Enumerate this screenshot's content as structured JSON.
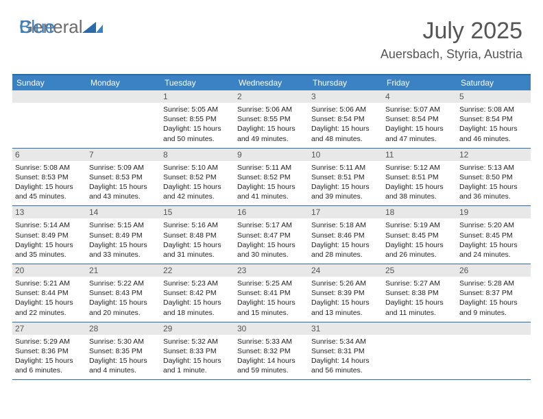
{
  "logo": {
    "line1": "General",
    "line2": "Blue"
  },
  "header": {
    "month_title": "July 2025",
    "location": "Auersbach, Styria, Austria"
  },
  "day_names": [
    "Sunday",
    "Monday",
    "Tuesday",
    "Wednesday",
    "Thursday",
    "Friday",
    "Saturday"
  ],
  "colors": {
    "header_bg": "#3b82c4",
    "border": "#2b6aa8",
    "daynum_bg": "#e8e8e8",
    "text_title": "#555555"
  },
  "weeks": [
    [
      null,
      null,
      {
        "n": "1",
        "sunrise": "5:05 AM",
        "sunset": "8:55 PM",
        "daylight": "15 hours and 50 minutes."
      },
      {
        "n": "2",
        "sunrise": "5:06 AM",
        "sunset": "8:55 PM",
        "daylight": "15 hours and 49 minutes."
      },
      {
        "n": "3",
        "sunrise": "5:06 AM",
        "sunset": "8:54 PM",
        "daylight": "15 hours and 48 minutes."
      },
      {
        "n": "4",
        "sunrise": "5:07 AM",
        "sunset": "8:54 PM",
        "daylight": "15 hours and 47 minutes."
      },
      {
        "n": "5",
        "sunrise": "5:08 AM",
        "sunset": "8:54 PM",
        "daylight": "15 hours and 46 minutes."
      }
    ],
    [
      {
        "n": "6",
        "sunrise": "5:08 AM",
        "sunset": "8:53 PM",
        "daylight": "15 hours and 45 minutes."
      },
      {
        "n": "7",
        "sunrise": "5:09 AM",
        "sunset": "8:53 PM",
        "daylight": "15 hours and 43 minutes."
      },
      {
        "n": "8",
        "sunrise": "5:10 AM",
        "sunset": "8:52 PM",
        "daylight": "15 hours and 42 minutes."
      },
      {
        "n": "9",
        "sunrise": "5:11 AM",
        "sunset": "8:52 PM",
        "daylight": "15 hours and 41 minutes."
      },
      {
        "n": "10",
        "sunrise": "5:11 AM",
        "sunset": "8:51 PM",
        "daylight": "15 hours and 39 minutes."
      },
      {
        "n": "11",
        "sunrise": "5:12 AM",
        "sunset": "8:51 PM",
        "daylight": "15 hours and 38 minutes."
      },
      {
        "n": "12",
        "sunrise": "5:13 AM",
        "sunset": "8:50 PM",
        "daylight": "15 hours and 36 minutes."
      }
    ],
    [
      {
        "n": "13",
        "sunrise": "5:14 AM",
        "sunset": "8:49 PM",
        "daylight": "15 hours and 35 minutes."
      },
      {
        "n": "14",
        "sunrise": "5:15 AM",
        "sunset": "8:49 PM",
        "daylight": "15 hours and 33 minutes."
      },
      {
        "n": "15",
        "sunrise": "5:16 AM",
        "sunset": "8:48 PM",
        "daylight": "15 hours and 31 minutes."
      },
      {
        "n": "16",
        "sunrise": "5:17 AM",
        "sunset": "8:47 PM",
        "daylight": "15 hours and 30 minutes."
      },
      {
        "n": "17",
        "sunrise": "5:18 AM",
        "sunset": "8:46 PM",
        "daylight": "15 hours and 28 minutes."
      },
      {
        "n": "18",
        "sunrise": "5:19 AM",
        "sunset": "8:45 PM",
        "daylight": "15 hours and 26 minutes."
      },
      {
        "n": "19",
        "sunrise": "5:20 AM",
        "sunset": "8:45 PM",
        "daylight": "15 hours and 24 minutes."
      }
    ],
    [
      {
        "n": "20",
        "sunrise": "5:21 AM",
        "sunset": "8:44 PM",
        "daylight": "15 hours and 22 minutes."
      },
      {
        "n": "21",
        "sunrise": "5:22 AM",
        "sunset": "8:43 PM",
        "daylight": "15 hours and 20 minutes."
      },
      {
        "n": "22",
        "sunrise": "5:23 AM",
        "sunset": "8:42 PM",
        "daylight": "15 hours and 18 minutes."
      },
      {
        "n": "23",
        "sunrise": "5:25 AM",
        "sunset": "8:41 PM",
        "daylight": "15 hours and 15 minutes."
      },
      {
        "n": "24",
        "sunrise": "5:26 AM",
        "sunset": "8:39 PM",
        "daylight": "15 hours and 13 minutes."
      },
      {
        "n": "25",
        "sunrise": "5:27 AM",
        "sunset": "8:38 PM",
        "daylight": "15 hours and 11 minutes."
      },
      {
        "n": "26",
        "sunrise": "5:28 AM",
        "sunset": "8:37 PM",
        "daylight": "15 hours and 9 minutes."
      }
    ],
    [
      {
        "n": "27",
        "sunrise": "5:29 AM",
        "sunset": "8:36 PM",
        "daylight": "15 hours and 6 minutes."
      },
      {
        "n": "28",
        "sunrise": "5:30 AM",
        "sunset": "8:35 PM",
        "daylight": "15 hours and 4 minutes."
      },
      {
        "n": "29",
        "sunrise": "5:32 AM",
        "sunset": "8:33 PM",
        "daylight": "15 hours and 1 minute."
      },
      {
        "n": "30",
        "sunrise": "5:33 AM",
        "sunset": "8:32 PM",
        "daylight": "14 hours and 59 minutes."
      },
      {
        "n": "31",
        "sunrise": "5:34 AM",
        "sunset": "8:31 PM",
        "daylight": "14 hours and 56 minutes."
      },
      null,
      null
    ]
  ],
  "labels": {
    "sunrise": "Sunrise:",
    "sunset": "Sunset:",
    "daylight": "Daylight:"
  }
}
